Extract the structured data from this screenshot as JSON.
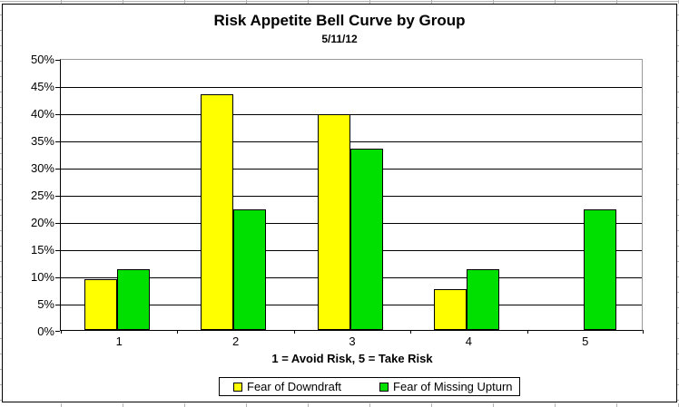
{
  "chart_data": {
    "type": "bar",
    "title": "Risk Appetite Bell Curve by Group",
    "subtitle": "5/11/12",
    "categories": [
      "1",
      "2",
      "3",
      "4",
      "5"
    ],
    "series": [
      {
        "name": "Fear of Downdraft",
        "color": "#FFFF00",
        "values": [
          9.4,
          43.4,
          39.6,
          7.5,
          0
        ]
      },
      {
        "name": "Fear of Missing Upturn",
        "color": "#00E000",
        "values": [
          11.1,
          22.2,
          33.3,
          11.1,
          22.2
        ]
      }
    ],
    "xlabel": "1 = Avoid Risk, 5 = Take Risk",
    "ylabel": "",
    "ylim": [
      0,
      50
    ],
    "ytick_step": 5,
    "ytick_labels": [
      "0%",
      "5%",
      "10%",
      "15%",
      "20%",
      "25%",
      "30%",
      "35%",
      "40%",
      "45%",
      "50%"
    ],
    "grid": true,
    "legend_position": "bottom",
    "colors": {
      "gridline": "#000000",
      "plot_border": "#9a9a9a",
      "bar_border": "#000000"
    }
  }
}
